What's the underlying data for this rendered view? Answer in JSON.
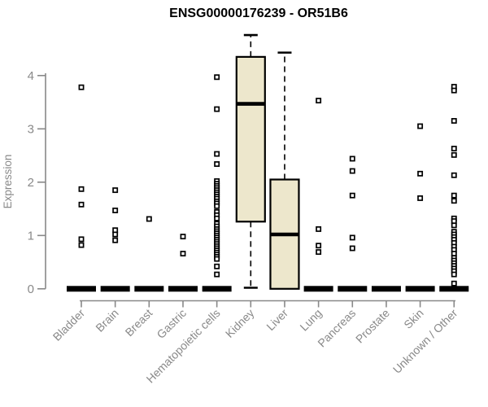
{
  "chart_data": {
    "type": "boxplot",
    "title": "ENSG00000176239 - OR51B6",
    "xlabel": "",
    "ylabel": "Expression",
    "ylim": [
      0,
      4.8
    ],
    "yticks": [
      0,
      1,
      2,
      3,
      4
    ],
    "grid": false,
    "legend": false,
    "categories": [
      "Bladder",
      "Brain",
      "Breast",
      "Gastric",
      "Hematopoietic cells",
      "Kidney",
      "Liver",
      "Lung",
      "Pancreas",
      "Prostate",
      "Skin",
      "Unknown / Other"
    ],
    "boxes": [
      {
        "category": "Bladder",
        "q1": 0,
        "median": 0,
        "q3": 0,
        "whisker_low": 0,
        "whisker_high": 0,
        "outliers": [
          3.78,
          1.87,
          1.58,
          0.93,
          0.82
        ]
      },
      {
        "category": "Brain",
        "q1": 0,
        "median": 0,
        "q3": 0,
        "whisker_low": 0,
        "whisker_high": 0,
        "outliers": [
          1.85,
          1.47,
          1.1,
          1.02,
          0.91
        ]
      },
      {
        "category": "Breast",
        "q1": 0,
        "median": 0,
        "q3": 0,
        "whisker_low": 0,
        "whisker_high": 0,
        "outliers": [
          1.31
        ]
      },
      {
        "category": "Gastric",
        "q1": 0,
        "median": 0,
        "q3": 0,
        "whisker_low": 0,
        "whisker_high": 0,
        "outliers": [
          0.98,
          0.66
        ]
      },
      {
        "category": "Hematopoietic cells",
        "q1": 0,
        "median": 0,
        "q3": 0,
        "whisker_low": 0,
        "whisker_high": 0,
        "outliers": [
          3.97,
          3.37,
          2.53,
          2.34,
          2.02,
          1.97,
          1.93,
          1.89,
          1.85,
          1.81,
          1.77,
          1.73,
          1.69,
          1.64,
          1.6,
          1.55,
          1.44,
          1.38,
          1.32,
          1.22,
          1.17,
          1.12,
          1.08,
          1.04,
          1.0,
          0.96,
          0.92,
          0.88,
          0.84,
          0.8,
          0.76,
          0.72,
          0.68,
          0.64,
          0.6,
          0.56,
          0.42,
          0.27
        ]
      },
      {
        "category": "Kidney",
        "q1": 1.26,
        "median": 3.47,
        "q3": 4.35,
        "whisker_low": 0.02,
        "whisker_high": 4.76,
        "outliers": []
      },
      {
        "category": "Liver",
        "q1": 0,
        "median": 1.02,
        "q3": 2.05,
        "whisker_low": 0,
        "whisker_high": 4.43,
        "outliers": []
      },
      {
        "category": "Lung",
        "q1": 0,
        "median": 0,
        "q3": 0,
        "whisker_low": 0,
        "whisker_high": 0,
        "outliers": [
          3.53,
          1.12,
          0.81,
          0.69
        ]
      },
      {
        "category": "Pancreas",
        "q1": 0,
        "median": 0,
        "q3": 0,
        "whisker_low": 0,
        "whisker_high": 0,
        "outliers": [
          2.44,
          2.21,
          1.75,
          0.96,
          0.76
        ]
      },
      {
        "category": "Prostate",
        "q1": 0,
        "median": 0,
        "q3": 0,
        "whisker_low": 0,
        "whisker_high": 0,
        "outliers": []
      },
      {
        "category": "Skin",
        "q1": 0,
        "median": 0,
        "q3": 0,
        "whisker_low": 0,
        "whisker_high": 0,
        "outliers": [
          3.05,
          2.16,
          1.7
        ]
      },
      {
        "category": "Unknown / Other",
        "q1": 0,
        "median": 0,
        "q3": 0,
        "whisker_low": 0,
        "whisker_high": 0,
        "outliers": [
          3.79,
          3.72,
          3.15,
          2.63,
          2.51,
          2.13,
          1.75,
          1.65,
          1.32,
          1.27,
          1.19,
          1.07,
          1.02,
          0.97,
          0.92,
          0.86,
          0.79,
          0.73,
          0.66,
          0.58,
          0.53,
          0.48,
          0.43,
          0.38,
          0.33,
          0.27,
          0.1
        ]
      }
    ],
    "colors": {
      "box_fill": "#EDE7CC",
      "box_stroke": "#000000",
      "median": "#000000",
      "outlier_fill": "#FFFFFF",
      "outlier_stroke": "#000000",
      "axis": "#898989",
      "title": "#000000",
      "background": "#FFFFFF"
    }
  }
}
